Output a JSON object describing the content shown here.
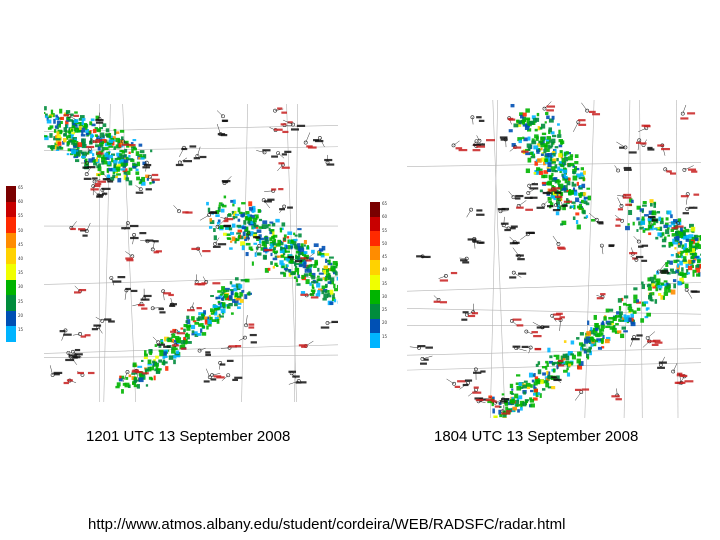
{
  "panels": [
    {
      "caption": "1201 UTC 13 September 2008"
    },
    {
      "caption": "1804 UTC 13 September 2008"
    }
  ],
  "source_url": "http://www.atmos.albany.edu/student/cordeira/WEB/RADSFC/radar.html",
  "legend": {
    "colors": [
      "#7a0000",
      "#c80000",
      "#ff2a00",
      "#ff8c00",
      "#ffd200",
      "#f0ff00",
      "#00b400",
      "#008c3c",
      "#0050b4",
      "#00b4ff"
    ],
    "ticks": [
      "65",
      "60",
      "55",
      "50",
      "45",
      "40",
      "35",
      "30",
      "25",
      "20",
      "15"
    ]
  },
  "colors": {
    "station_text_red": "#c81e1e",
    "station_text_black": "#111111",
    "boundary": "#b4b4b4"
  }
}
